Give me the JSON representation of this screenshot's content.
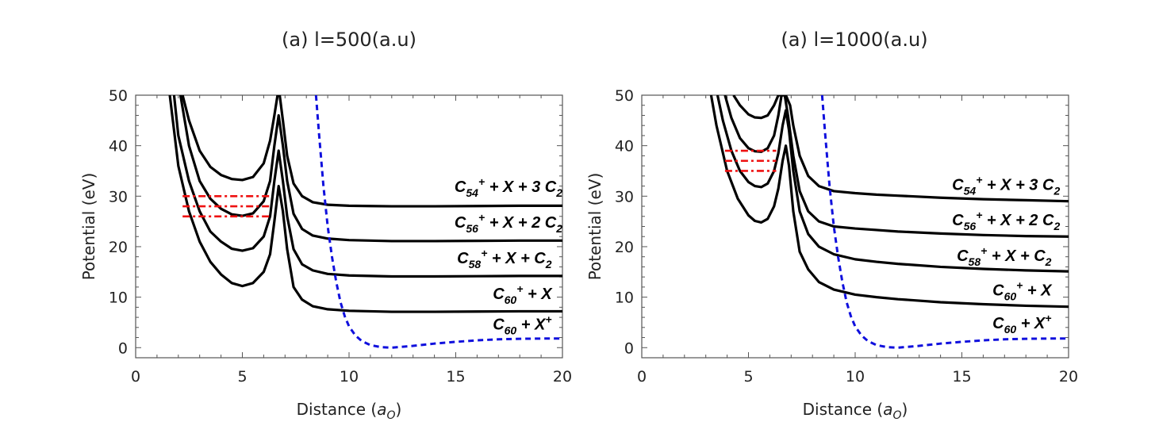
{
  "chart_data": [
    {
      "type": "line",
      "title": "(a) l=500(a.u)",
      "xlabel": "Distance",
      "xlabel_unit": "a",
      "xlabel_unit_sub": "O",
      "ylabel": "Potential (eV)",
      "xlim": [
        0,
        20
      ],
      "ylim": [
        -2,
        50
      ],
      "xticks": [
        0,
        5,
        10,
        15,
        20
      ],
      "yticks": [
        0,
        10,
        20,
        30,
        40,
        50
      ],
      "series": [
        {
          "name": "C60+ + X",
          "color": "#000000",
          "style": "solid",
          "x": [
            1.6,
            2,
            2.5,
            3,
            3.5,
            4,
            4.5,
            5,
            5.5,
            6,
            6.3,
            6.5,
            6.7,
            6.9,
            7.1,
            7.4,
            7.8,
            8.3,
            9,
            10,
            11,
            12,
            14,
            16,
            18,
            20
          ],
          "y": [
            50,
            36,
            27,
            21,
            17,
            14.5,
            12.8,
            12.2,
            12.8,
            15,
            18.5,
            25,
            32,
            27,
            19.5,
            12,
            9.5,
            8.2,
            7.6,
            7.3,
            7.2,
            7.1,
            7.1,
            7.15,
            7.2,
            7.2
          ]
        },
        {
          "name": "C58+ + X + C2",
          "color": "#000000",
          "style": "solid",
          "x": [
            1.8,
            2,
            2.5,
            3,
            3.5,
            4,
            4.5,
            5,
            5.5,
            6,
            6.3,
            6.5,
            6.7,
            6.9,
            7.1,
            7.4,
            7.8,
            8.3,
            9,
            10,
            11,
            12,
            14,
            16,
            18,
            20
          ],
          "y": [
            50,
            42,
            33,
            27,
            23,
            21,
            19.6,
            19.2,
            19.7,
            22,
            26,
            33,
            39,
            33,
            26,
            19.5,
            16.5,
            15.3,
            14.6,
            14.3,
            14.2,
            14.1,
            14.1,
            14.15,
            14.2,
            14.2
          ]
        },
        {
          "name": "C56+ + X + 2 C2",
          "color": "#000000",
          "style": "solid",
          "x": [
            2.1,
            2.5,
            3,
            3.5,
            4,
            4.5,
            5,
            5.5,
            6,
            6.3,
            6.5,
            6.7,
            6.9,
            7.1,
            7.4,
            7.8,
            8.3,
            9,
            10,
            11,
            12,
            14,
            16,
            18,
            20
          ],
          "y": [
            50,
            40,
            33,
            29.5,
            27.5,
            26.4,
            26.1,
            26.6,
            29,
            33,
            40,
            46,
            40,
            33,
            26.5,
            23.5,
            22.2,
            21.6,
            21.3,
            21.2,
            21.1,
            21.1,
            21.15,
            21.2,
            21.2
          ]
        },
        {
          "name": "C54+ + X + 3 C2",
          "color": "#000000",
          "style": "solid",
          "x": [
            2.2,
            2.5,
            3,
            3.5,
            4,
            4.5,
            5,
            5.5,
            6,
            6.3,
            6.5,
            6.65,
            6.75,
            6.9,
            7.1,
            7.4,
            7.8,
            8.3,
            9,
            10,
            11,
            12,
            14,
            16,
            18,
            20
          ],
          "y": [
            50,
            45,
            39,
            35.8,
            34.2,
            33.4,
            33.2,
            33.8,
            36.5,
            41,
            46,
            50,
            50,
            45,
            38,
            32.5,
            30,
            28.8,
            28.3,
            28.1,
            28.05,
            28,
            28,
            28.05,
            28.1,
            28.1
          ]
        },
        {
          "name": "C60 + X+",
          "color": "#1010dd",
          "style": "dashed",
          "x": [
            8.45,
            8.6,
            8.8,
            9,
            9.2,
            9.4,
            9.6,
            9.8,
            10,
            10.3,
            10.6,
            11,
            11.5,
            12,
            13,
            14,
            15,
            16,
            17,
            18,
            19,
            20
          ],
          "y": [
            50,
            42,
            32,
            24,
            18,
            13,
            9,
            6.2,
            4.2,
            2.4,
            1.3,
            0.5,
            0.1,
            0,
            0.35,
            0.8,
            1.15,
            1.45,
            1.65,
            1.75,
            1.8,
            1.8
          ]
        }
      ],
      "levels": [
        {
          "y": 30,
          "x": [
            2.2,
            6.3
          ],
          "color": "#ee1111",
          "style": "dashdot"
        },
        {
          "y": 28,
          "x": [
            2.2,
            6.3
          ],
          "color": "#ee1111",
          "style": "dashdot"
        },
        {
          "y": 26,
          "x": [
            2.2,
            6.3
          ],
          "color": "#ee1111",
          "style": "dashdot"
        }
      ],
      "annotations": [
        {
          "main": "C",
          "sub": "54",
          "sup": "+",
          "rest": " + X + 3 C",
          "sub2": "2",
          "x": 20,
          "y": 30.8
        },
        {
          "main": "C",
          "sub": "56",
          "sup": "+",
          "rest": " + X + 2 C",
          "sub2": "2",
          "x": 20,
          "y": 23.8
        },
        {
          "main": "C",
          "sub": "58",
          "sup": "+",
          "rest": " + X + C",
          "sub2": "2",
          "x": 19.5,
          "y": 16.7
        },
        {
          "main": "C",
          "sub": "60",
          "sup": "+",
          "rest": " + X",
          "sub2": "",
          "x": 19.5,
          "y": 9.6
        },
        {
          "main": "C",
          "sub": "60",
          "sup": "",
          "rest": " + X",
          "sub2": "",
          "sup2": "+",
          "x": 19.5,
          "y": 3.6
        }
      ]
    },
    {
      "type": "line",
      "title": "(a) l=1000(a.u)",
      "xlabel": "Distance",
      "xlabel_unit": "a",
      "xlabel_unit_sub": "O",
      "ylabel": "Potential (eV)",
      "xlim": [
        0,
        20
      ],
      "ylim": [
        -2,
        50
      ],
      "xticks": [
        0,
        5,
        10,
        15,
        20
      ],
      "yticks": [
        0,
        10,
        20,
        30,
        40,
        50
      ],
      "series": [
        {
          "name": "C60+ + X",
          "color": "#000000",
          "style": "solid",
          "x": [
            3.25,
            3.5,
            4,
            4.5,
            5,
            5.3,
            5.6,
            5.9,
            6.2,
            6.4,
            6.6,
            6.75,
            6.9,
            7.1,
            7.4,
            7.8,
            8.3,
            9,
            10,
            11,
            12,
            14,
            16,
            18,
            20
          ],
          "y": [
            50,
            44,
            35,
            29.5,
            26.2,
            25.1,
            24.8,
            25.5,
            28,
            31.5,
            37,
            40,
            36,
            27,
            19,
            15.5,
            13,
            11.5,
            10.5,
            10,
            9.6,
            9,
            8.6,
            8.3,
            8.1
          ]
        },
        {
          "name": "C58+ + X + C2",
          "color": "#000000",
          "style": "solid",
          "x": [
            3.55,
            3.8,
            4.2,
            4.6,
            5,
            5.3,
            5.6,
            5.9,
            6.2,
            6.4,
            6.6,
            6.75,
            6.9,
            7.1,
            7.4,
            7.8,
            8.3,
            9,
            10,
            11,
            12,
            14,
            16,
            18,
            20
          ],
          "y": [
            50,
            45,
            39,
            35,
            32.8,
            32,
            31.8,
            32.5,
            35,
            38.5,
            44,
            47,
            43,
            35,
            27,
            22.5,
            20,
            18.5,
            17.5,
            17,
            16.6,
            16,
            15.6,
            15.3,
            15.1
          ]
        },
        {
          "name": "C56+ + X + 2 C2",
          "color": "#000000",
          "style": "solid",
          "x": [
            3.9,
            4.2,
            4.6,
            5,
            5.3,
            5.6,
            5.9,
            6.2,
            6.4,
            6.55,
            6.7,
            6.85,
            7.1,
            7.4,
            7.8,
            8.3,
            9,
            10,
            11,
            12,
            14,
            16,
            18,
            20
          ],
          "y": [
            50,
            45.5,
            41.5,
            39.5,
            38.9,
            38.8,
            39.5,
            42,
            46,
            50,
            50,
            46,
            38,
            31,
            27,
            25,
            24,
            23.6,
            23.3,
            23,
            22.6,
            22.3,
            22.1,
            22
          ]
        },
        {
          "name": "C54+ + X + 3 C2",
          "color": "#000000",
          "style": "solid",
          "x": [
            4.3,
            4.6,
            5,
            5.3,
            5.6,
            5.9,
            6.2,
            6.4,
            6.55,
            6.75,
            6.95,
            7.1,
            7.4,
            7.8,
            8.3,
            9,
            10,
            11,
            12,
            14,
            16,
            18,
            20
          ],
          "y": [
            50,
            48,
            46.2,
            45.6,
            45.5,
            46,
            48,
            50,
            50,
            50,
            48,
            44,
            38,
            34,
            32,
            31,
            30.6,
            30.3,
            30.1,
            29.7,
            29.4,
            29.2,
            29
          ]
        },
        {
          "name": "C60 + X+",
          "color": "#1010dd",
          "style": "dashed",
          "x": [
            8.45,
            8.6,
            8.8,
            9,
            9.2,
            9.4,
            9.6,
            9.8,
            10,
            10.3,
            10.6,
            11,
            11.5,
            12,
            13,
            14,
            15,
            16,
            17,
            18,
            19,
            20
          ],
          "y": [
            50,
            42,
            32,
            24,
            18,
            13,
            9,
            6.2,
            4.2,
            2.4,
            1.3,
            0.5,
            0.1,
            0,
            0.35,
            0.8,
            1.15,
            1.45,
            1.65,
            1.75,
            1.8,
            1.8
          ]
        }
      ],
      "levels": [
        {
          "y": 39,
          "x": [
            3.9,
            6.3
          ],
          "color": "#ee1111",
          "style": "dashdot"
        },
        {
          "y": 37,
          "x": [
            3.9,
            6.3
          ],
          "color": "#ee1111",
          "style": "dashdot"
        },
        {
          "y": 35,
          "x": [
            3.9,
            6.3
          ],
          "color": "#ee1111",
          "style": "dashdot"
        }
      ],
      "annotations": [
        {
          "main": "C",
          "sub": "54",
          "sup": "+",
          "rest": " + X + 3 C",
          "sub2": "2",
          "x": 19.6,
          "y": 31.2
        },
        {
          "main": "C",
          "sub": "56",
          "sup": "+",
          "rest": " + X + 2 C",
          "sub2": "2",
          "x": 19.6,
          "y": 24.2
        },
        {
          "main": "C",
          "sub": "58",
          "sup": "+",
          "rest": " + X + C",
          "sub2": "2",
          "x": 19.2,
          "y": 17.2
        },
        {
          "main": "C",
          "sub": "60",
          "sup": "+",
          "rest": " + X",
          "sub2": "",
          "x": 19.2,
          "y": 10.3
        },
        {
          "main": "C",
          "sub": "60",
          "sup": "",
          "rest": " + X",
          "sub2": "",
          "sup2": "+",
          "x": 19.2,
          "y": 3.8
        }
      ]
    }
  ]
}
